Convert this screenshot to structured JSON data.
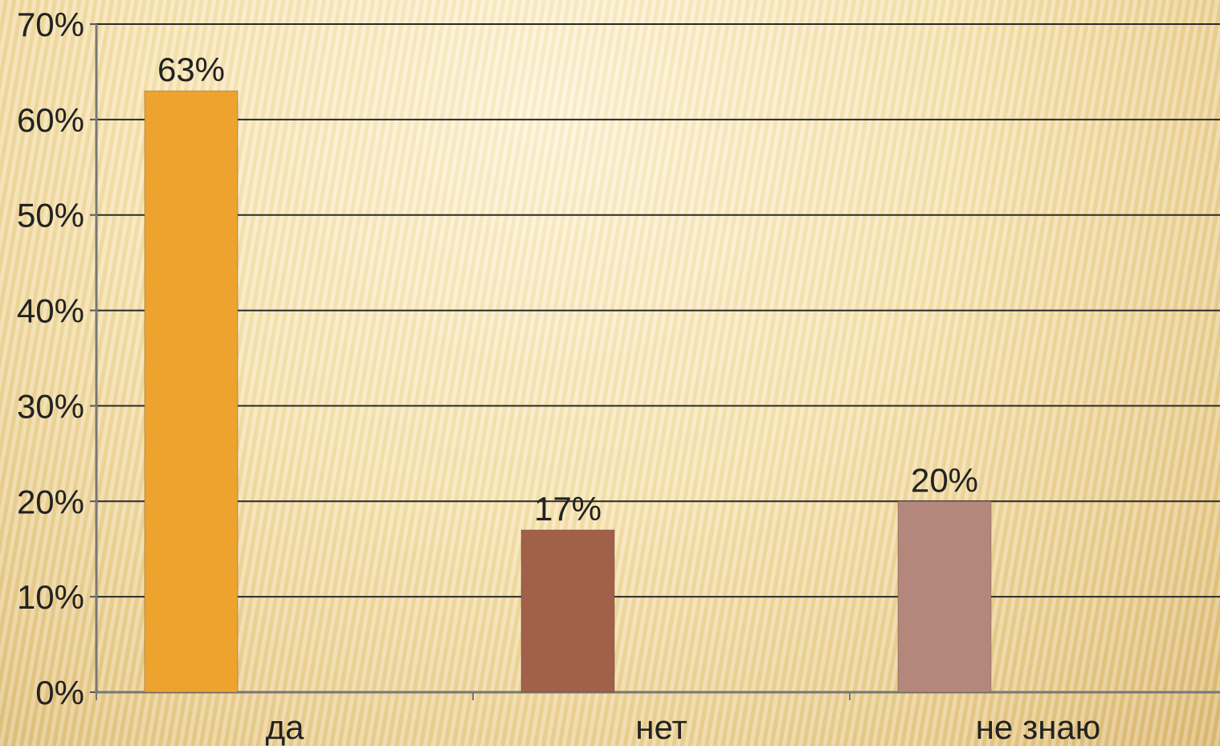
{
  "chart_data": {
    "type": "bar",
    "categories": [
      "да",
      "нет",
      "не знаю"
    ],
    "values": [
      63,
      17,
      20
    ],
    "data_labels": [
      "63%",
      "17%",
      "20%"
    ],
    "colors": [
      "#eda32d",
      "#a0604a",
      "#b4877c"
    ],
    "ylim": [
      0,
      70
    ],
    "y_ticks": [
      0,
      10,
      20,
      30,
      40,
      50,
      60,
      70
    ],
    "y_tick_labels": [
      "0%",
      "10%",
      "20%",
      "30%",
      "40%",
      "50%",
      "60%",
      "70%"
    ],
    "grid": true,
    "legend": false,
    "title": "",
    "xlabel": "",
    "ylabel": ""
  }
}
